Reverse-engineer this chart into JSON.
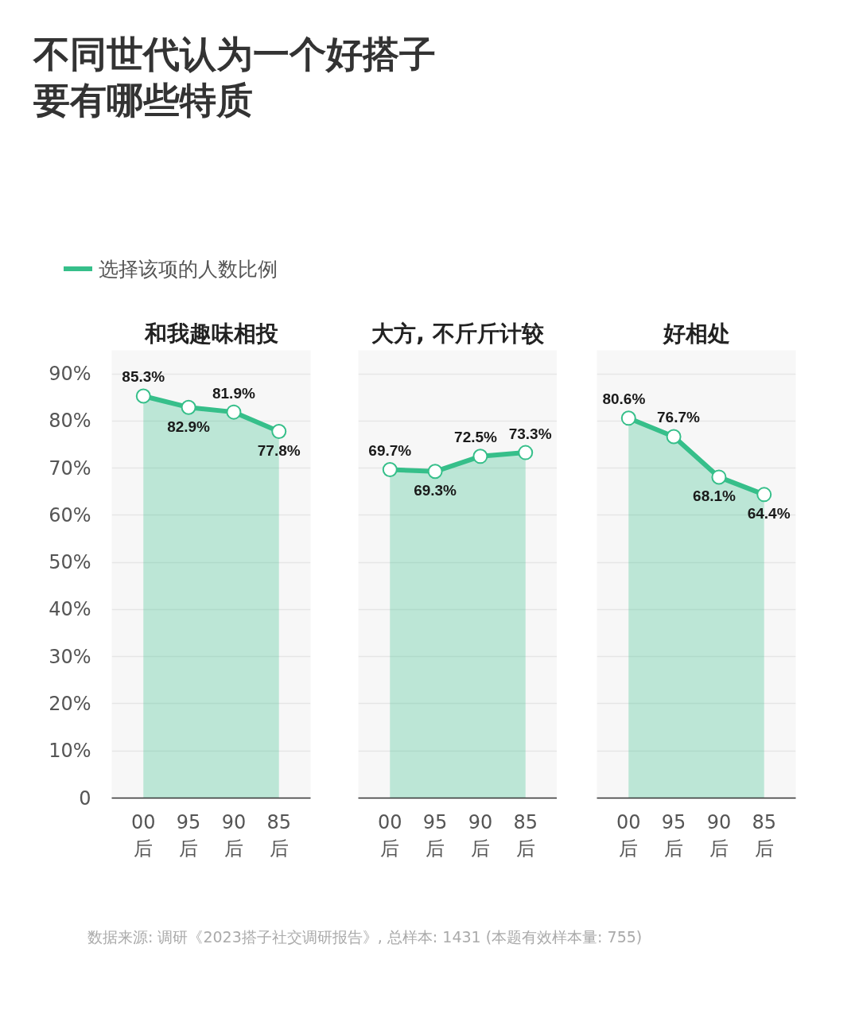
{
  "chart_data": [
    {
      "type": "other",
      "title": "不同世代认为一个好搭子要有哪些特质"
    },
    {
      "type": "area",
      "title": "和我趣味相投",
      "categories": [
        "00后",
        "95后",
        "90后",
        "85后"
      ],
      "series": [
        {
          "name": "选择该项的人数比例",
          "color": "#36bf8a",
          "values": [
            85.3,
            82.9,
            81.9,
            77.8
          ],
          "value_labels": [
            "85.3%",
            "82.9%",
            "81.9%",
            "77.8%"
          ]
        }
      ],
      "ylim": [
        0,
        95
      ],
      "yticks": [
        0,
        {
          "value": 10,
          "label": "10%"
        },
        {
          "value": 20,
          "label": "20%"
        },
        {
          "value": 30,
          "label": "30%"
        },
        {
          "value": 40,
          "label": "40%"
        },
        {
          "value": 50,
          "label": "50%"
        },
        {
          "value": 60,
          "label": "60%"
        },
        {
          "value": 70,
          "label": "70%"
        },
        {
          "value": 80,
          "label": "80%"
        },
        {
          "value": 90,
          "label": "90%"
        }
      ],
      "grid": "y",
      "legend": "top left",
      "marker": "circle"
    },
    {
      "type": "area",
      "title": "大方, 不斤斤计较",
      "categories": [
        "00后",
        "95后",
        "90后",
        "85后"
      ],
      "series": [
        {
          "color": "#36bf8a",
          "values": [
            69.7,
            69.3,
            72.5,
            73.3
          ],
          "value_labels": [
            "69.7%",
            "69.3%",
            "72.5%",
            "73.3%"
          ]
        }
      ],
      "ylim": [
        0,
        95
      ],
      "yticks": [
        0,
        10,
        20,
        30,
        40,
        50,
        60,
        70,
        80,
        90
      ],
      "grid": "y",
      "tick_labels": "x",
      "marker": "circle"
    },
    {
      "type": "area",
      "title": "好相处",
      "categories": [
        "00后",
        "95后",
        "90后",
        "85后"
      ],
      "series": [
        {
          "color": "#36bf8a",
          "values": [
            80.6,
            76.7,
            68.1,
            64.4
          ],
          "value_labels": [
            "80.6%",
            "76.7%",
            "68.1%",
            "64.4%"
          ]
        }
      ],
      "ylim": [
        0,
        95
      ],
      "yticks": [
        0,
        10,
        20,
        30,
        40,
        50,
        60,
        70,
        80,
        90
      ],
      "grid": "y",
      "tick_labels": "x",
      "marker": "circle"
    },
    {
      "type": "other",
      "annotations": [
        "数据来源: 调研《2023搭子社交调研报告》, 总样本: 1431 (本题有效样本量: 755)"
      ]
    }
  ]
}
